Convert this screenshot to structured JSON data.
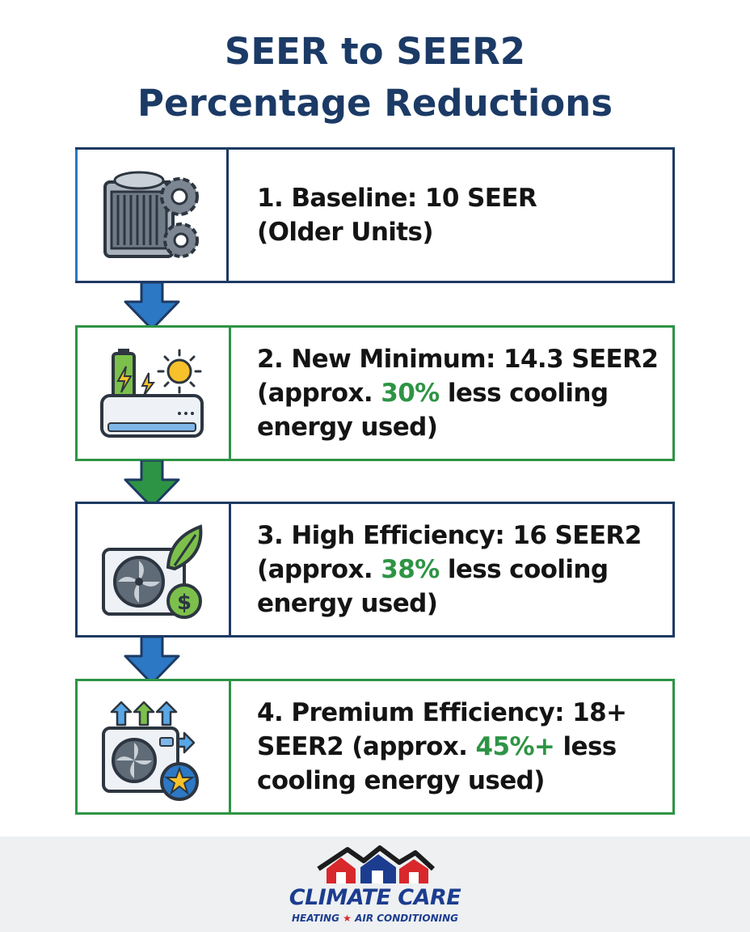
{
  "title": {
    "line1": "SEER to SEER2",
    "line2": "Percentage Reductions"
  },
  "steps": [
    {
      "icon": "outdoor-ac-gears-icon",
      "lines": [
        {
          "before": "1. Baseline: 10 SEER",
          "pct": "",
          "after": ""
        },
        {
          "before": "(Older Units)",
          "pct": "",
          "after": ""
        }
      ]
    },
    {
      "icon": "minisplit-battery-sun-icon",
      "lines": [
        {
          "before": "2. New Minimum: 14.3 SEER2",
          "pct": "",
          "after": ""
        },
        {
          "before": "(approx. ",
          "pct": "30%",
          "after": " less cooling"
        },
        {
          "before": "energy used)",
          "pct": "",
          "after": ""
        }
      ]
    },
    {
      "icon": "outdoor-unit-leaf-dollar-icon",
      "lines": [
        {
          "before": "3. High Efficiency: 16 SEER2",
          "pct": "",
          "after": ""
        },
        {
          "before": "(approx. ",
          "pct": "38%",
          "after": " less cooling"
        },
        {
          "before": "energy used)",
          "pct": "",
          "after": ""
        }
      ]
    },
    {
      "icon": "outdoor-unit-star-arrows-icon",
      "lines": [
        {
          "before": "4. Premium Efficiency: 18+",
          "pct": "",
          "after": ""
        },
        {
          "before": "SEER2 (approx. ",
          "pct": "45%+",
          "after": " less"
        },
        {
          "before": "cooling energy used)",
          "pct": "",
          "after": ""
        }
      ]
    }
  ],
  "brand": {
    "name": "CLIMATE CARE",
    "sub_left": "HEATING",
    "sub_star": "★",
    "sub_right": "AIR CONDITIONING"
  },
  "colors": {
    "title": "#1b3a66",
    "navy": "#1d3a63",
    "green": "#2e9445",
    "arrow_blue": "#2c78c4",
    "brand_red": "#d8282c",
    "brand_blue": "#1c3d8f"
  }
}
